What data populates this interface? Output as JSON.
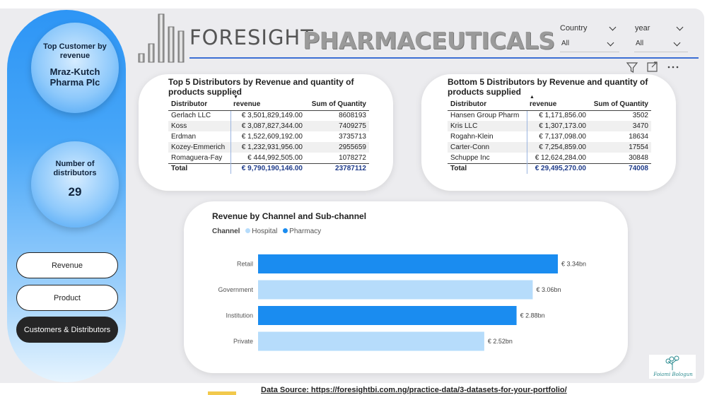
{
  "kpis": {
    "top_customer": {
      "title": "Top Customer by revenue",
      "value": "Mraz-Kutch Pharma Plc"
    },
    "distributors": {
      "title": "Number of distributors",
      "value": "29"
    }
  },
  "nav": {
    "revenue": "Revenue",
    "product": "Product",
    "customers": "Customers & Distributors"
  },
  "brand": {
    "part1": "FORESIGHT",
    "part2": "PHARMACEUTICALS"
  },
  "slicers": {
    "country": {
      "title": "Country",
      "value": "All"
    },
    "year": {
      "title": "year",
      "value": "All"
    }
  },
  "top_table": {
    "title": "Top 5 Distributors by Revenue and quantity of products supplied",
    "headers": {
      "distributor": "Distributor",
      "revenue": "revenue",
      "quantity": "Sum of Quantity"
    },
    "rows": [
      {
        "distributor": "Gerlach LLC",
        "revenue": "€ 3,501,829,149.00",
        "quantity": "8608193"
      },
      {
        "distributor": "Koss",
        "revenue": "€ 3,087,827,344.00",
        "quantity": "7409275"
      },
      {
        "distributor": "Erdman",
        "revenue": "€ 1,522,609,192.00",
        "quantity": "3735713"
      },
      {
        "distributor": "Kozey-Emmerich",
        "revenue": "€ 1,232,931,956.00",
        "quantity": "2955659"
      },
      {
        "distributor": "Romaguera-Fay",
        "revenue": "€ 444,992,505.00",
        "quantity": "1078272"
      }
    ],
    "total": {
      "label": "Total",
      "revenue": "€ 9,790,190,146.00",
      "quantity": "23787112"
    }
  },
  "bottom_table": {
    "title": "Bottom 5 Distributors by Revenue and quantity of products supplied",
    "headers": {
      "distributor": "Distributor",
      "revenue": "revenue",
      "quantity": "Sum of Quantity"
    },
    "rows": [
      {
        "distributor": "Hansen Group Pharm",
        "revenue": "€ 1,171,856.00",
        "quantity": "3502"
      },
      {
        "distributor": "Kris LLC",
        "revenue": "€ 1,307,173.00",
        "quantity": "3470"
      },
      {
        "distributor": "Rogahn-Klein",
        "revenue": "€ 7,137,098.00",
        "quantity": "18634"
      },
      {
        "distributor": "Carter-Conn",
        "revenue": "€ 7,254,859.00",
        "quantity": "17554"
      },
      {
        "distributor": "Schuppe Inc",
        "revenue": "€ 12,624,284.00",
        "quantity": "30848"
      }
    ],
    "total": {
      "label": "Total",
      "revenue": "€ 29,495,270.00",
      "quantity": "74008"
    }
  },
  "chart_data": {
    "type": "bar",
    "orientation": "horizontal",
    "title": "Revenue by Channel and Sub-channel",
    "legend_title": "Channel",
    "legend": [
      {
        "name": "Hospital",
        "color": "#b6dcfb"
      },
      {
        "name": "Pharmacy",
        "color": "#1a8cf0"
      }
    ],
    "categories": [
      "Retail",
      "Government",
      "Institution",
      "Private"
    ],
    "values": [
      3.34,
      3.06,
      2.88,
      2.52
    ],
    "channel": [
      "Pharmacy",
      "Hospital",
      "Pharmacy",
      "Hospital"
    ],
    "data_labels": [
      "€ 3.34bn",
      "€ 3.06bn",
      "€ 2.88bn",
      "€ 2.52bn"
    ],
    "xlim": [
      0,
      3.34
    ],
    "grid": false
  },
  "colors": {
    "accent": "#1a8cf0",
    "light": "#b6dcfb",
    "dark_button": "#252526",
    "header_line": "#3c6fd4"
  },
  "signature": "Foiami Bologun",
  "footer": "Data Source: https://foresightbi.com.ng/practice-data/3-datasets-for-your-portfolio/"
}
